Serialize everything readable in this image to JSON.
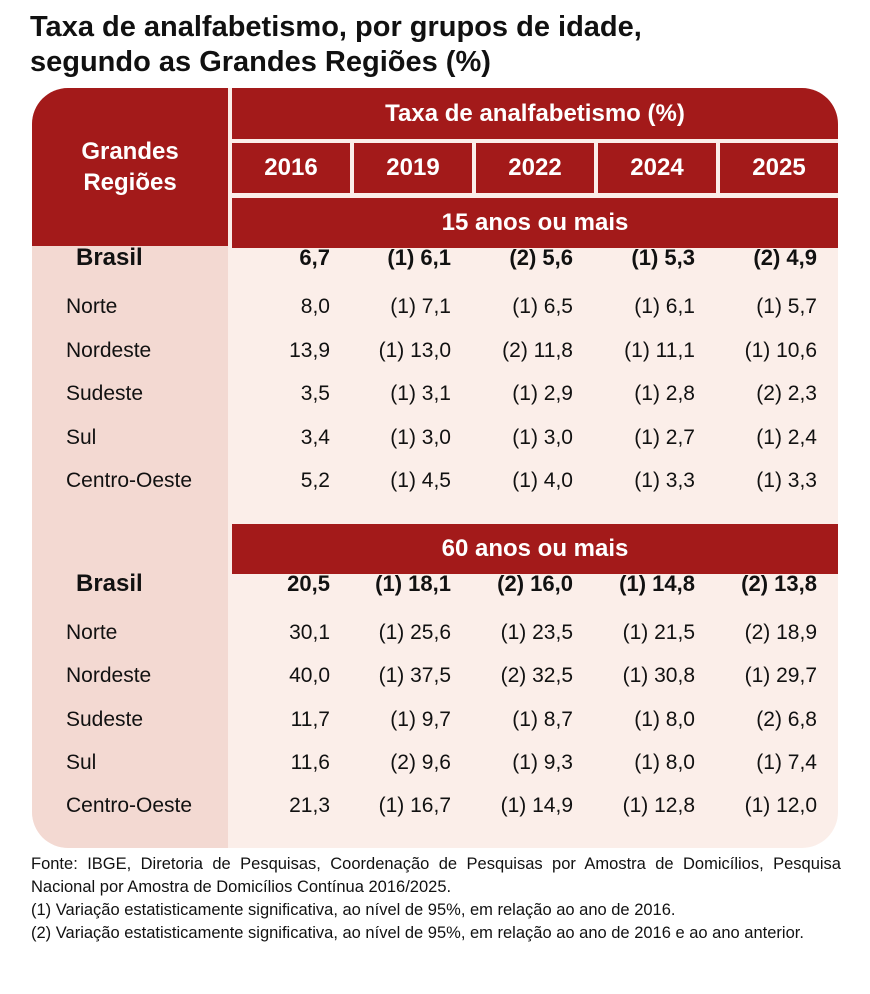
{
  "title": {
    "line1": "Taxa de analfabetismo, por grupos de idade,",
    "line2": "segundo as Grandes Regiões (%)"
  },
  "header": {
    "regions_label_line1": "Grandes",
    "regions_label_line2": "Regiões",
    "main": "Taxa de analfabetismo (%)",
    "years": [
      "2016",
      "2019",
      "2022",
      "2024",
      "2025"
    ]
  },
  "chart_data": {
    "type": "table",
    "title": "Taxa de analfabetismo, por grupos de idade, segundo as Grandes Regiões (%)",
    "columns": [
      "2016",
      "2019",
      "2022",
      "2024",
      "2025"
    ],
    "sections": [
      {
        "name": "15 anos ou mais",
        "rows": [
          {
            "region": "Brasil",
            "bold": true,
            "values": [
              "6,7",
              "(1) 6,1",
              "(2) 5,6",
              "(1) 5,3",
              "(2) 4,9"
            ]
          },
          {
            "region": "Norte",
            "values": [
              "8,0",
              "(1) 7,1",
              "(1) 6,5",
              "(1) 6,1",
              "(1) 5,7"
            ]
          },
          {
            "region": "Nordeste",
            "values": [
              "13,9",
              "(1) 13,0",
              "(2) 11,8",
              "(1) 11,1",
              "(1) 10,6"
            ]
          },
          {
            "region": "Sudeste",
            "values": [
              "3,5",
              "(1) 3,1",
              "(1) 2,9",
              "(1) 2,8",
              "(2) 2,3"
            ]
          },
          {
            "region": "Sul",
            "values": [
              "3,4",
              "(1) 3,0",
              "(1) 3,0",
              "(1) 2,7",
              "(1) 2,4"
            ]
          },
          {
            "region": "Centro-Oeste",
            "values": [
              "5,2",
              "(1) 4,5",
              "(1) 4,0",
              "(1) 3,3",
              "(1) 3,3"
            ]
          }
        ]
      },
      {
        "name": "60 anos ou mais",
        "rows": [
          {
            "region": "Brasil",
            "bold": true,
            "values": [
              "20,5",
              "(1) 18,1",
              "(2) 16,0",
              "(1) 14,8",
              "(2) 13,8"
            ]
          },
          {
            "region": "Norte",
            "values": [
              "30,1",
              "(1) 25,6",
              "(1) 23,5",
              "(1) 21,5",
              "(2) 18,9"
            ]
          },
          {
            "region": "Nordeste",
            "values": [
              "40,0",
              "(1) 37,5",
              "(2) 32,5",
              "(1) 30,8",
              "(1) 29,7"
            ]
          },
          {
            "region": "Sudeste",
            "values": [
              "11,7",
              "(1) 9,7",
              "(1) 8,7",
              "(1) 8,0",
              "(2) 6,8"
            ]
          },
          {
            "region": "Sul",
            "values": [
              "11,6",
              "(2) 9,6",
              "(1) 9,3",
              "(1) 8,0",
              "(1) 7,4"
            ]
          },
          {
            "region": "Centro-Oeste",
            "values": [
              "21,3",
              "(1) 16,7",
              "(1) 14,9",
              "(1) 12,8",
              "(1) 12,0"
            ]
          }
        ]
      }
    ]
  },
  "notes": {
    "source": "Fonte: IBGE, Diretoria de Pesquisas, Coordenação de Pesquisas por Amostra de Domicílios, Pesquisa Nacional por Amostra de Domicílios Contínua 2016/2025.",
    "note1": "(1) Variação estatisticamente significativa, ao nível de 95%, em relação ao ano de 2016.",
    "note2": "(2) Variação estatisticamente significativa, ao nível de 95%, em relação ao ano de 2016 e ao ano anterior."
  },
  "colors": {
    "header_red": "#a31a1a",
    "body_bg": "#fbeee9",
    "label_col_bg": "#f3d9d2"
  }
}
